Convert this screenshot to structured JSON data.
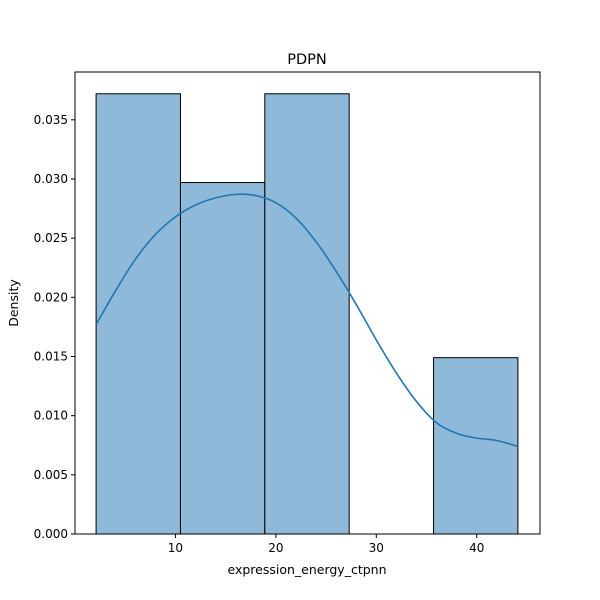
{
  "chart_data": {
    "type": "histogram",
    "title": "PDPN",
    "xlabel": "expression_energy_ctpnn",
    "ylabel": "Density",
    "xlim": [
      0.0,
      46.3
    ],
    "ylim": [
      0,
      0.03904
    ],
    "x_ticks": [
      10,
      20,
      30,
      40
    ],
    "y_ticks": [
      0.0,
      0.005,
      0.01,
      0.015,
      0.02,
      0.025,
      0.03,
      0.035
    ],
    "y_tick_labels": [
      "0.000",
      "0.005",
      "0.010",
      "0.015",
      "0.020",
      "0.025",
      "0.030",
      "0.035"
    ],
    "bins": [
      {
        "x0": 2.1,
        "x1": 10.5,
        "density": 0.0372
      },
      {
        "x0": 10.5,
        "x1": 18.9,
        "density": 0.0297
      },
      {
        "x0": 18.9,
        "x1": 27.3,
        "density": 0.0372
      },
      {
        "x0": 27.3,
        "x1": 35.7,
        "density": 0.0
      },
      {
        "x0": 35.7,
        "x1": 44.1,
        "density": 0.0149
      }
    ],
    "kde": {
      "x": [
        2.1,
        4.0,
        6.0,
        8.0,
        10.0,
        12.0,
        14.0,
        16.0,
        18.0,
        20.0,
        22.0,
        24.0,
        26.0,
        28.0,
        30.0,
        32.0,
        34.0,
        36.0,
        38.0,
        40.0,
        42.0,
        44.1
      ],
      "y": [
        0.0177,
        0.0205,
        0.0232,
        0.0253,
        0.0268,
        0.0278,
        0.0284,
        0.0287,
        0.0286,
        0.028,
        0.0267,
        0.0247,
        0.0222,
        0.0194,
        0.0164,
        0.0136,
        0.0112,
        0.0094,
        0.0085,
        0.0081,
        0.0079,
        0.0074
      ]
    },
    "colors": {
      "bar_fill": "#8fb9d9",
      "bar_edge": "#000000",
      "kde_line": "#1f77b4"
    }
  }
}
